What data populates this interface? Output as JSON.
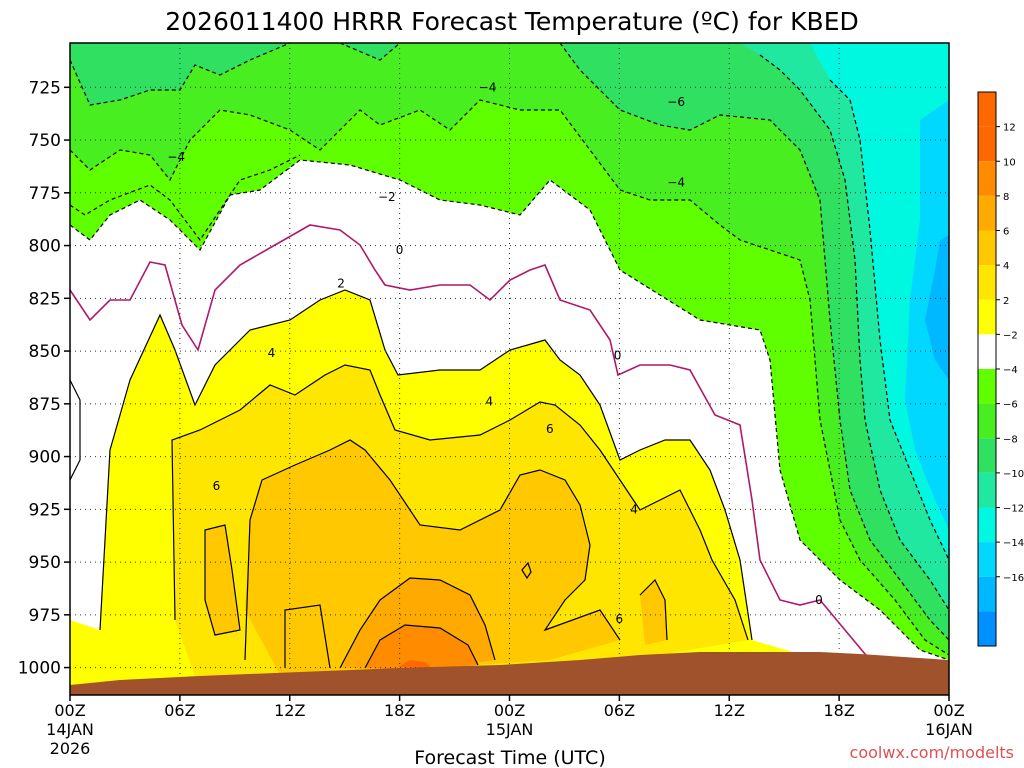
{
  "chart_data": {
    "type": "heatmap",
    "title": "2026011400 HRRR Forecast Temperature (ºC) for KBED",
    "xlabel": "Forecast Time (UTC)",
    "credit": "coolwx.com/modelts",
    "x_ticks": [
      {
        "hour": 0,
        "label": "00Z",
        "sub1": "14JAN",
        "sub2": "2026"
      },
      {
        "hour": 6,
        "label": "06Z",
        "sub1": "",
        "sub2": ""
      },
      {
        "hour": 12,
        "label": "12Z",
        "sub1": "",
        "sub2": ""
      },
      {
        "hour": 18,
        "label": "18Z",
        "sub1": "",
        "sub2": ""
      },
      {
        "hour": 24,
        "label": "00Z",
        "sub1": "15JAN",
        "sub2": ""
      },
      {
        "hour": 30,
        "label": "06Z",
        "sub1": "",
        "sub2": ""
      },
      {
        "hour": 36,
        "label": "12Z",
        "sub1": "",
        "sub2": ""
      },
      {
        "hour": 42,
        "label": "18Z",
        "sub1": "",
        "sub2": ""
      },
      {
        "hour": 48,
        "label": "00Z",
        "sub1": "16JAN",
        "sub2": ""
      }
    ],
    "xlim": [
      0,
      48
    ],
    "y_ticks": [
      725,
      750,
      775,
      800,
      825,
      850,
      875,
      900,
      925,
      950,
      975,
      1000
    ],
    "ylim": [
      1013,
      704
    ],
    "colorbar": {
      "levels": [
        {
          "label": "12",
          "color": "#ff6800"
        },
        {
          "label": "10",
          "color": "#ff8c00"
        },
        {
          "label": "8",
          "color": "#ffaa00"
        },
        {
          "label": "6",
          "color": "#ffc800"
        },
        {
          "label": "4",
          "color": "#ffe600"
        },
        {
          "label": "2",
          "color": "#ffff00"
        },
        {
          "label": "−2",
          "color": "#ffffff"
        },
        {
          "label": "−4",
          "color": "#60ff00"
        },
        {
          "label": "−6",
          "color": "#48ee20"
        },
        {
          "label": "−8",
          "color": "#30e060"
        },
        {
          "label": "−10",
          "color": "#20e8a0"
        },
        {
          "label": "−12",
          "color": "#00f8e0"
        },
        {
          "label": "−14",
          "color": "#00d8ff"
        },
        {
          "label": "−16",
          "color": "#00b8ff"
        }
      ],
      "bottom_color": "#0090ff",
      "top_color": "#ff6800"
    },
    "terrain_color": "#a0522d",
    "contour_labels": [
      {
        "text": "−4",
        "hour": 5.8,
        "p": 758
      },
      {
        "text": "−4",
        "hour": 22.8,
        "p": 725
      },
      {
        "text": "−6",
        "hour": 33.1,
        "p": 732
      },
      {
        "text": "−4",
        "hour": 33.1,
        "p": 770
      },
      {
        "text": "−2",
        "hour": 17.3,
        "p": 777
      },
      {
        "text": "0",
        "hour": 18.0,
        "p": 802
      },
      {
        "text": "2",
        "hour": 14.8,
        "p": 818
      },
      {
        "text": "4",
        "hour": 11.0,
        "p": 851
      },
      {
        "text": "4",
        "hour": 22.9,
        "p": 874
      },
      {
        "text": "6",
        "hour": 8.0,
        "p": 914
      },
      {
        "text": "6",
        "hour": 26.2,
        "p": 887
      },
      {
        "text": "4",
        "hour": 30.8,
        "p": 925
      },
      {
        "text": "0",
        "hour": 29.9,
        "p": 852
      },
      {
        "text": "0",
        "hour": 40.9,
        "p": 968
      },
      {
        "text": "6",
        "hour": 30.0,
        "p": 977
      }
    ]
  }
}
